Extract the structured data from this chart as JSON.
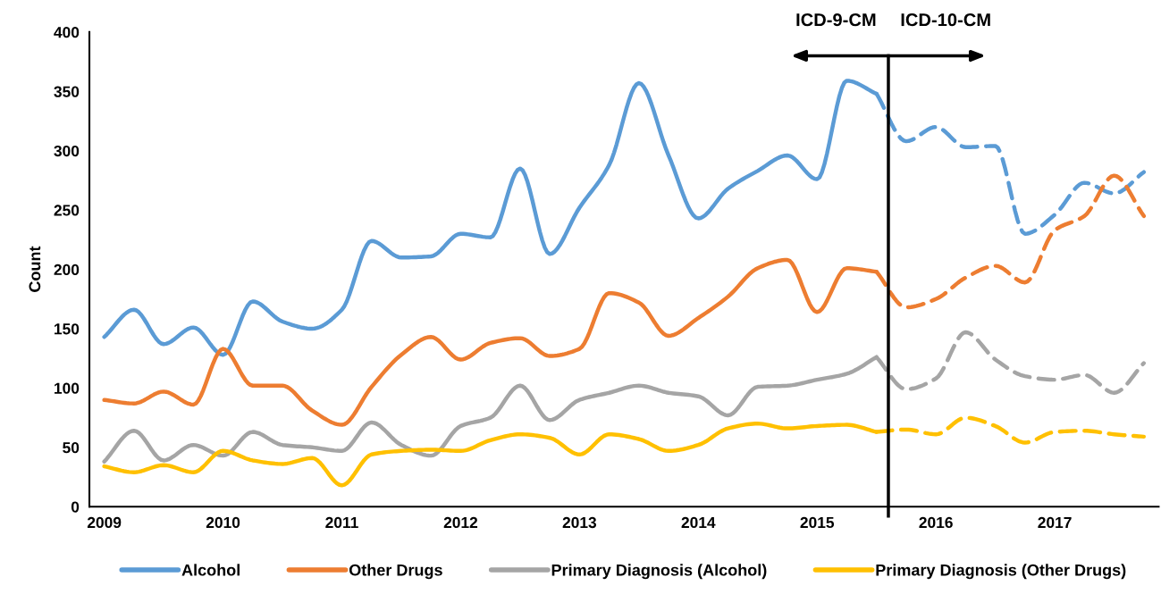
{
  "chart_data": {
    "type": "line",
    "ylabel": "Count",
    "xlim": [
      2008.875,
      2017.875
    ],
    "xticks": [
      2009,
      2010,
      2011,
      2012,
      2013,
      2014,
      2015,
      2016,
      2017
    ],
    "ylim": [
      0,
      400
    ],
    "yticks": [
      0,
      50,
      100,
      150,
      200,
      250,
      300,
      350,
      400
    ],
    "grid": false,
    "legend": "bottom",
    "marker": "none",
    "ref_lines": [
      {
        "axis": "x",
        "value": 2015.6,
        "color": "#000000"
      }
    ],
    "annotations": [
      "ICD-9-CM",
      "ICD-10-CM"
    ],
    "series": [
      {
        "name": "Alcohol",
        "color": "#5b9bd5",
        "line_style": "solid",
        "x": [
          2009.0,
          2009.25,
          2009.5,
          2009.75,
          2010.0,
          2010.25,
          2010.5,
          2010.75,
          2011.0,
          2011.25,
          2011.5,
          2011.75,
          2012.0,
          2012.25,
          2012.5,
          2012.75,
          2013.0,
          2013.25,
          2013.5,
          2013.75,
          2014.0,
          2014.25,
          2014.5,
          2014.75,
          2015.0,
          2015.25,
          2015.5
        ],
        "values": [
          143,
          166,
          137,
          151,
          128,
          173,
          156,
          150,
          166,
          224,
          210,
          211,
          230,
          227,
          285,
          213,
          252,
          288,
          357,
          296,
          243,
          268,
          283,
          296,
          276,
          359,
          348
        ]
      },
      {
        "name": "Other Drugs",
        "color": "#ed7d31",
        "line_style": "solid",
        "x": [
          2009.0,
          2009.25,
          2009.5,
          2009.75,
          2010.0,
          2010.25,
          2010.5,
          2010.75,
          2011.0,
          2011.25,
          2011.5,
          2011.75,
          2012.0,
          2012.25,
          2012.5,
          2012.75,
          2013.0,
          2013.25,
          2013.5,
          2013.75,
          2014.0,
          2014.25,
          2014.5,
          2014.75,
          2015.0,
          2015.25,
          2015.5
        ],
        "values": [
          90,
          87,
          97,
          86,
          133,
          102,
          102,
          81,
          69,
          101,
          128,
          143,
          124,
          138,
          142,
          127,
          133,
          180,
          172,
          144,
          159,
          177,
          201,
          208,
          164,
          201,
          198
        ]
      },
      {
        "name": "Primary Diagnosis (Alcohol)",
        "color": "#a5a5a5",
        "line_style": "solid",
        "x": [
          2009.0,
          2009.25,
          2009.5,
          2009.75,
          2010.0,
          2010.25,
          2010.5,
          2010.75,
          2011.0,
          2011.25,
          2011.5,
          2011.75,
          2012.0,
          2012.25,
          2012.5,
          2012.75,
          2013.0,
          2013.25,
          2013.5,
          2013.75,
          2014.0,
          2014.25,
          2014.5,
          2014.75,
          2015.0,
          2015.25,
          2015.5
        ],
        "values": [
          38,
          64,
          39,
          52,
          43,
          63,
          52,
          50,
          47,
          71,
          52,
          43,
          68,
          75,
          102,
          73,
          90,
          96,
          102,
          96,
          93,
          77,
          101,
          102,
          107,
          112,
          126
        ]
      },
      {
        "name": "Primary Diagnosis (Other Drugs)",
        "color": "#ffc000",
        "line_style": "solid",
        "x": [
          2009.0,
          2009.25,
          2009.5,
          2009.75,
          2010.0,
          2010.25,
          2010.5,
          2010.75,
          2011.0,
          2011.25,
          2011.5,
          2011.75,
          2012.0,
          2012.25,
          2012.5,
          2012.75,
          2013.0,
          2013.25,
          2013.5,
          2013.75,
          2014.0,
          2014.25,
          2014.5,
          2014.75,
          2015.0,
          2015.25,
          2015.5
        ],
        "values": [
          34,
          29,
          35,
          29,
          47,
          39,
          36,
          41,
          18,
          44,
          47,
          48,
          47,
          56,
          61,
          58,
          44,
          61,
          57,
          47,
          52,
          66,
          70,
          66,
          68,
          69,
          63
        ]
      },
      {
        "color": "#5b9bd5",
        "line_style": "dashed",
        "x": [
          2015.5,
          2015.75,
          2016.0,
          2016.25,
          2016.5,
          2016.75,
          2017.0,
          2017.25,
          2017.5,
          2017.75
        ],
        "values": [
          348,
          308,
          320,
          303,
          304,
          230,
          246,
          273,
          264,
          282
        ]
      },
      {
        "color": "#ed7d31",
        "line_style": "dashed",
        "x": [
          2015.5,
          2015.75,
          2016.0,
          2016.25,
          2016.5,
          2016.75,
          2017.0,
          2017.25,
          2017.5,
          2017.75
        ],
        "values": [
          198,
          168,
          175,
          193,
          203,
          189,
          233,
          245,
          279,
          245
        ]
      },
      {
        "color": "#a5a5a5",
        "line_style": "dashed",
        "x": [
          2015.5,
          2015.75,
          2016.0,
          2016.25,
          2016.5,
          2016.75,
          2017.0,
          2017.25,
          2017.5,
          2017.75
        ],
        "values": [
          126,
          99,
          108,
          147,
          124,
          110,
          107,
          111,
          96,
          121
        ]
      },
      {
        "color": "#ffc000",
        "line_style": "dashed",
        "x": [
          2015.5,
          2015.75,
          2016.0,
          2016.25,
          2016.5,
          2016.75,
          2017.0,
          2017.25,
          2017.5,
          2017.75
        ],
        "values": [
          63,
          65,
          61,
          75,
          68,
          54,
          63,
          64,
          61,
          59
        ]
      }
    ]
  }
}
